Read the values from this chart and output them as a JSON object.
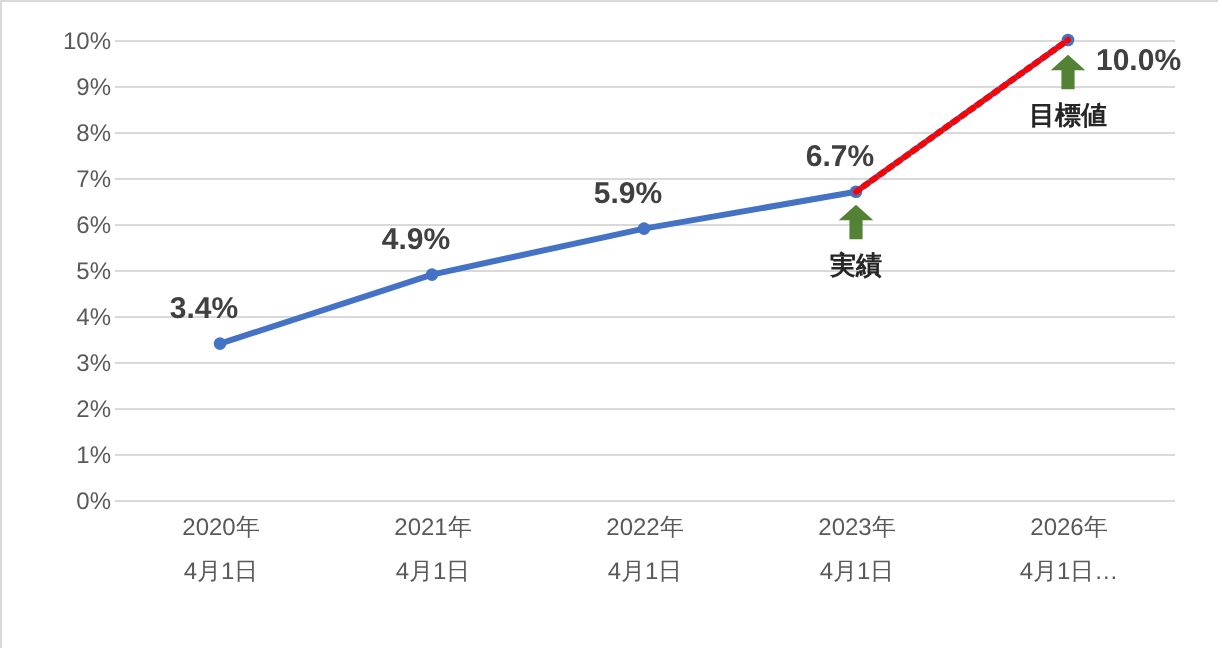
{
  "chart_data": {
    "type": "line",
    "categories": [
      "2020年\n4月1日",
      "2021年\n4月1日",
      "2022年\n4月1日",
      "2023年\n4月1日",
      "2026年\n4月1日…"
    ],
    "series": [
      {
        "color": "#4472c4",
        "values": [
          3.4,
          4.9,
          5.9,
          6.7,
          10.0
        ],
        "marker": "circle",
        "line_style": "solid",
        "value_labels": [
          "3.4%",
          "4.9%",
          "5.9%",
          "6.7%",
          "10.0%"
        ]
      },
      {
        "color": "#ff0000",
        "values": [
          null,
          null,
          null,
          6.7,
          10.0
        ],
        "marker": "none",
        "line_style": "dotted"
      }
    ],
    "ylim": [
      0,
      10
    ],
    "yticks": [
      {
        "value": 0,
        "label": "0%"
      },
      {
        "value": 1,
        "label": "1%"
      },
      {
        "value": 2,
        "label": "2%"
      },
      {
        "value": 3,
        "label": "3%"
      },
      {
        "value": 4,
        "label": "4%"
      },
      {
        "value": 5,
        "label": "5%"
      },
      {
        "value": 6,
        "label": "6%"
      },
      {
        "value": 7,
        "label": "7%"
      },
      {
        "value": 8,
        "label": "8%"
      },
      {
        "value": 9,
        "label": "9%"
      },
      {
        "value": 10,
        "label": "10%"
      }
    ],
    "annotations": [
      "実績",
      "目標値"
    ],
    "grid": "y"
  }
}
